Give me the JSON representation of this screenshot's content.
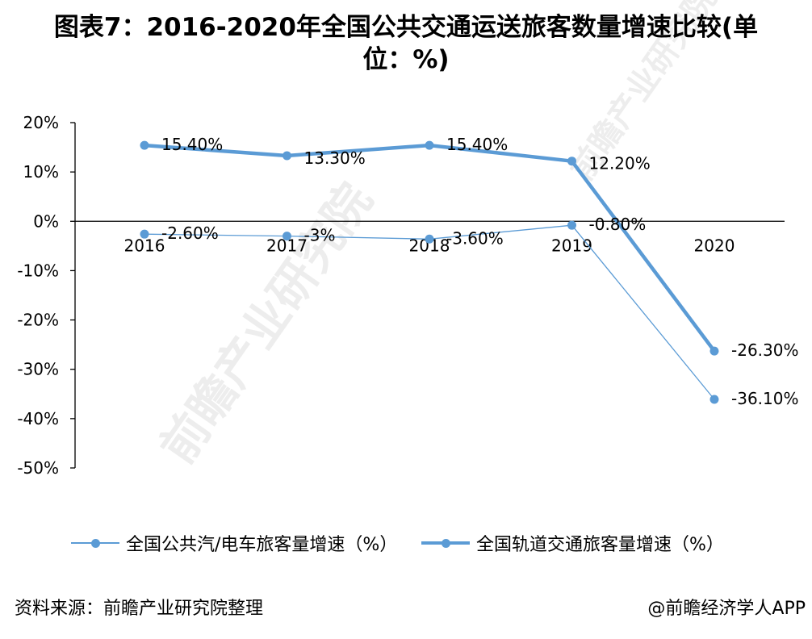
{
  "title_line1": "图表7：2016-2020年全国公共交通运送旅客数量增速比较(单",
  "title_line2": "位：%)",
  "source": "资料来源：前瞻产业研究院整理",
  "credit": "@前瞻经济学人APP",
  "watermark": "前瞻产业研究院",
  "colors": {
    "series": "#5b9bd5",
    "axis": "#000000"
  },
  "chart_data": {
    "type": "line",
    "title": "图表7：2016-2020年全国公共交通运送旅客数量增速比较(单位：%)",
    "categories": [
      "2016",
      "2017",
      "2018",
      "2019",
      "2020"
    ],
    "ylim": [
      -50,
      20
    ],
    "yticks": [
      20,
      10,
      0,
      -10,
      -20,
      -30,
      -40,
      -50
    ],
    "ytick_labels": [
      "20%",
      "10%",
      "0%",
      "-10%",
      "-20%",
      "-30%",
      "-40%",
      "-50%"
    ],
    "grid": false,
    "legend_position": "bottom",
    "series": [
      {
        "name": "全国公共汽/电车旅客量增速（%）",
        "values": [
          -2.6,
          -3,
          -3.6,
          -0.8,
          -36.1
        ],
        "labels": [
          "-2.60%",
          "-3%",
          "-3.60%",
          "-0.80%",
          "-36.10%"
        ],
        "line": "thin"
      },
      {
        "name": "全国轨道交通旅客量增速（%）",
        "values": [
          15.4,
          13.3,
          15.4,
          12.2,
          -26.3
        ],
        "labels": [
          "15.40%",
          "13.30%",
          "15.40%",
          "12.20%",
          "-26.30%"
        ],
        "line": "thick"
      }
    ]
  }
}
